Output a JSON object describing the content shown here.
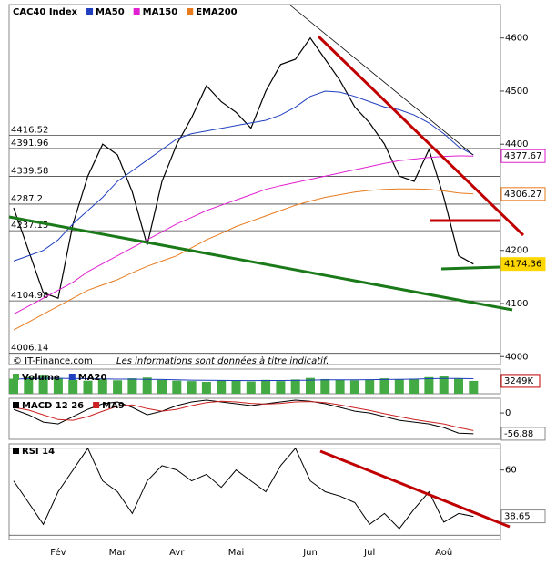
{
  "chart_data": [
    {
      "type": "line",
      "categories": [
        null,
        null,
        null,
        "Fév",
        null,
        null,
        null,
        "Mar",
        null,
        null,
        null,
        "Avr",
        null,
        null,
        null,
        "Mai",
        null,
        null,
        null,
        null,
        "Jun",
        null,
        null,
        null,
        "Jul",
        null,
        null,
        null,
        null,
        "Aoû",
        null,
        null
      ],
      "series": [
        {
          "name": "CAC40 Index",
          "color": "#000000",
          "tag_color": "#ffd700",
          "values": [
            4280,
            4200,
            4120,
            4110,
            4250,
            4340,
            4400,
            4380,
            4310,
            4210,
            4330,
            4400,
            4450,
            4510,
            4480,
            4460,
            4430,
            4500,
            4550,
            4560,
            4600,
            4560,
            4520,
            4470,
            4440,
            4400,
            4340,
            4330,
            4390,
            4300,
            4190,
            4174.36
          ]
        },
        {
          "name": "MA50",
          "color": "#1f3fbf",
          "values": [
            4180,
            4190,
            4200,
            4220,
            4250,
            4275,
            4300,
            4330,
            4350,
            4370,
            4390,
            4410,
            4420,
            4425,
            4430,
            4435,
            4440,
            4445,
            4455,
            4470,
            4490,
            4500,
            4498,
            4490,
            4480,
            4470,
            4465,
            4455,
            4440,
            4420,
            4395,
            4380
          ]
        },
        {
          "name": "MA150",
          "color": "#e020d0",
          "tag_color": "#e020d0",
          "values": [
            4080,
            4095,
            4110,
            4125,
            4140,
            4160,
            4175,
            4190,
            4205,
            4220,
            4235,
            4250,
            4262,
            4275,
            4285,
            4295,
            4305,
            4315,
            4322,
            4328,
            4334,
            4340,
            4346,
            4352,
            4358,
            4364,
            4369,
            4372,
            4375,
            4377,
            4378,
            4377.67
          ]
        },
        {
          "name": "EMA200",
          "color": "#e87b1e",
          "tag_color": "#e87b1e",
          "values": [
            4050,
            4065,
            4080,
            4095,
            4110,
            4125,
            4135,
            4145,
            4158,
            4170,
            4180,
            4190,
            4205,
            4220,
            4232,
            4245,
            4255,
            4265,
            4275,
            4285,
            4293,
            4300,
            4305,
            4310,
            4313,
            4315,
            4316,
            4316,
            4315,
            4312,
            4308,
            4306.27
          ]
        }
      ],
      "ylim": [
        3985,
        4663
      ],
      "yticks": [
        4000,
        4100,
        4200,
        4400,
        4500,
        4600
      ],
      "levels": [
        4416.52,
        4391.96,
        4339.58,
        4287.2,
        4237.15,
        4104.98,
        4006.14
      ],
      "source": "© IT-Finance.com",
      "note": "Les informations sont données à titre indicatif."
    },
    {
      "type": "bar",
      "series": [
        {
          "name": "Volume",
          "color": "#44aa44",
          "values": [
            3800,
            4200,
            4800,
            4000,
            3500,
            3300,
            3600,
            3400,
            3900,
            4100,
            3500,
            3300,
            3200,
            3000,
            3400,
            3300,
            3100,
            3500,
            3200,
            3600,
            4000,
            3700,
            3500,
            3400,
            3600,
            3900,
            3700,
            3800,
            4200,
            4500,
            3800,
            3249
          ]
        },
        {
          "name": "MA20",
          "color": "#1f3fbf",
          "values": [
            3700,
            3800,
            3900,
            3900,
            3850,
            3800,
            3750,
            3700,
            3700,
            3650,
            3600,
            3500,
            3450,
            3400,
            3380,
            3350,
            3330,
            3350,
            3350,
            3380,
            3450,
            3500,
            3520,
            3530,
            3550,
            3600,
            3650,
            3700,
            3800,
            3850,
            3850,
            3800
          ]
        }
      ],
      "ylim": [
        0,
        6000
      ],
      "last_label": {
        "value": 3249,
        "label": "3249K"
      }
    },
    {
      "type": "line",
      "series": [
        {
          "name": "MACD 12 26",
          "color": "#000000",
          "tag_color": "#ffffff",
          "values": [
            10,
            -5,
            -25,
            -30,
            -10,
            10,
            25,
            30,
            15,
            -5,
            5,
            20,
            30,
            35,
            30,
            25,
            20,
            25,
            30,
            35,
            32,
            25,
            15,
            5,
            0,
            -10,
            -20,
            -25,
            -30,
            -40,
            -55,
            -56.88
          ]
        },
        {
          "name": "MA9",
          "color": "#cc2222",
          "values": [
            15,
            8,
            -5,
            -18,
            -20,
            -10,
            5,
            18,
            22,
            12,
            5,
            10,
            20,
            28,
            32,
            30,
            26,
            24,
            26,
            30,
            31,
            28,
            22,
            14,
            7,
            -2,
            -10,
            -18,
            -24,
            -30,
            -40,
            -48
          ]
        }
      ],
      "ylim": [
        -72,
        40
      ],
      "yticks": [
        0
      ]
    },
    {
      "type": "line",
      "series": [
        {
          "name": "RSI 14",
          "color": "#000000",
          "tag_color": "#ffffff",
          "values": [
            55,
            45,
            35,
            50,
            60,
            70,
            55,
            50,
            40,
            55,
            62,
            60,
            55,
            58,
            52,
            60,
            55,
            50,
            62,
            70,
            55,
            50,
            48,
            45,
            35,
            40,
            33,
            42,
            50,
            36,
            40,
            38.65
          ]
        }
      ],
      "ylim": [
        28,
        72
      ],
      "yticks": [
        60
      ],
      "levels": [
        30,
        70
      ]
    }
  ]
}
